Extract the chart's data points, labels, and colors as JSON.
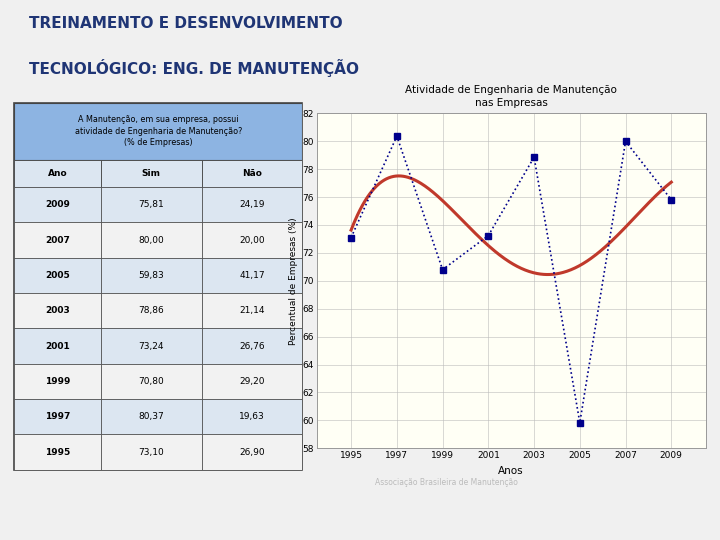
{
  "title_line1": "TREINAMENTO E DESENVOLVIMENTO",
  "title_line2": "TECNOLÓGICO: ENG. DE MANUTENÇÃO",
  "title_color": "#1f3575",
  "bg_color": "#f0f0f0",
  "table_header": "A Manutenção, em sua empresa, possui\natividade de Engenharia de Manutenção?\n(% de Empresas)",
  "table_header_bg": "#8db4e2",
  "table_col_header": [
    "Ano",
    "Sim",
    "Não"
  ],
  "table_col_header_bg": "#dce6f1",
  "table_rows": [
    [
      "2009",
      "75,81",
      "24,19"
    ],
    [
      "2007",
      "80,00",
      "20,00"
    ],
    [
      "2005",
      "59,83",
      "41,17"
    ],
    [
      "2003",
      "78,86",
      "21,14"
    ],
    [
      "2001",
      "73,24",
      "26,76"
    ],
    [
      "1999",
      "70,80",
      "29,20"
    ],
    [
      "1997",
      "80,37",
      "19,63"
    ],
    [
      "1995",
      "73,10",
      "26,90"
    ]
  ],
  "table_row_bg_odd": "#dce6f1",
  "table_row_bg_even": "#f2f2f2",
  "chart_bg": "#fffff5",
  "chart_title": "Atividade de Engenharia de Manutenção\nnas Empresas",
  "chart_xlabel": "Anos",
  "chart_ylabel": "Percentual de Empresas (%)",
  "chart_source": "Associação Brasileira de Manutenção",
  "years": [
    1995,
    1997,
    1999,
    2001,
    2003,
    2005,
    2007,
    2009
  ],
  "sim_values": [
    73.1,
    80.37,
    70.8,
    73.24,
    78.86,
    59.83,
    80.0,
    75.81
  ],
  "ylim": [
    58,
    82
  ],
  "yticks": [
    58,
    60,
    62,
    64,
    66,
    68,
    70,
    72,
    74,
    76,
    78,
    80,
    82
  ],
  "dot_color": "#00008b",
  "trend_color": "#c0392b",
  "grid_color": "#bbbbbb"
}
